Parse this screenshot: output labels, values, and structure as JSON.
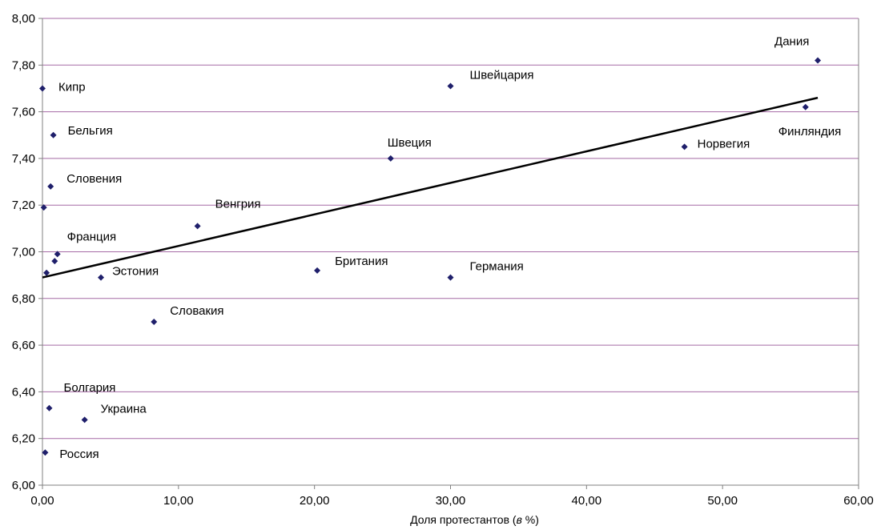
{
  "chart_data": {
    "type": "scatter",
    "xlabel": "Доля протестантов (в %)",
    "ylabel": "",
    "xlim": [
      0,
      60
    ],
    "ylim": [
      6.0,
      8.0
    ],
    "x_ticks": [
      "0,00",
      "10,00",
      "20,00",
      "30,00",
      "40,00",
      "50,00",
      "60,00"
    ],
    "y_ticks": [
      "6,00",
      "6,20",
      "6,40",
      "6,60",
      "6,80",
      "7,00",
      "7,20",
      "7,40",
      "7,60",
      "7,80",
      "8,00"
    ],
    "grid": "horizontal",
    "marker_color": "#1f1f6b",
    "grid_color": "#a56aa5",
    "trendline_color": "#000000",
    "trendline": {
      "x": [
        0.0,
        57.0
      ],
      "y": [
        6.89,
        7.66
      ]
    },
    "points": [
      {
        "label": "Дания",
        "x": 57.0,
        "y": 7.82
      },
      {
        "label": "Финляндия",
        "x": 56.1,
        "y": 7.62
      },
      {
        "label": "Норвегия",
        "x": 47.2,
        "y": 7.45
      },
      {
        "label": "Швейцария",
        "x": 30.0,
        "y": 7.71
      },
      {
        "label": "Швеция",
        "x": 25.6,
        "y": 7.4
      },
      {
        "label": "Германия",
        "x": 30.0,
        "y": 6.89
      },
      {
        "label": "Британия",
        "x": 20.2,
        "y": 6.92
      },
      {
        "label": "Венгрия",
        "x": 11.4,
        "y": 7.11
      },
      {
        "label": "Словакия",
        "x": 8.2,
        "y": 6.7
      },
      {
        "label": "Эстония",
        "x": 4.3,
        "y": 6.89
      },
      {
        "label": "Украина",
        "x": 3.1,
        "y": 6.28
      },
      {
        "label": "Болгария",
        "x": 0.5,
        "y": 6.33
      },
      {
        "label": "Россия",
        "x": 0.2,
        "y": 6.14
      },
      {
        "label": "Кипр",
        "x": 0.0,
        "y": 7.7
      },
      {
        "label": "Бельгия",
        "x": 0.8,
        "y": 7.5
      },
      {
        "label": "Словения",
        "x": 0.6,
        "y": 7.28
      },
      {
        "label": "",
        "x": 0.1,
        "y": 7.19
      },
      {
        "label": "Франция",
        "x": 1.1,
        "y": 6.99
      },
      {
        "label": "",
        "x": 0.9,
        "y": 6.96
      },
      {
        "label": "",
        "x": 0.3,
        "y": 6.91
      }
    ]
  }
}
